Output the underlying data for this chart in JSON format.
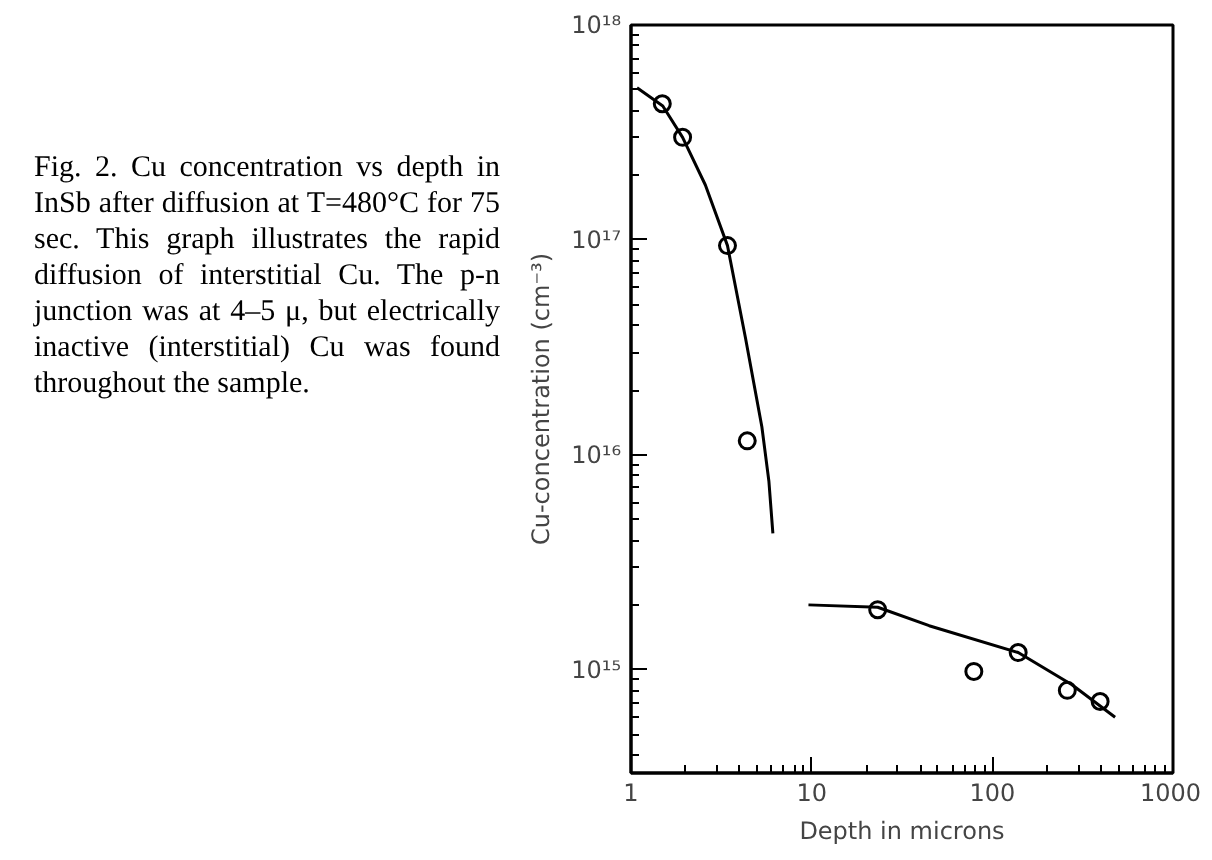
{
  "chart_data": {
    "type": "scatter",
    "annotations": [
      "Fig. 2. Cu concentration vs depth in InSb after diffusion at T=480°C for 75 sec. This graph illustrates the rapid diffusion of interstitial Cu. The p-n junction was at 4–5 μ, but electrically inactive (interstitial) Cu was found throughout the sample."
    ],
    "xlabel": "Depth in microns",
    "ylabel": "Cu-concentration (cm⁻³)",
    "log": "xy",
    "grid": false,
    "xlim": [
      1,
      1000
    ],
    "ylim": [
      330000000000000.0,
      1e+18
    ],
    "xticks": [
      1,
      10,
      100,
      1000
    ],
    "yticks": [
      {
        "value": 1000000000000000.0,
        "label": "10¹⁵"
      },
      {
        "value": 1e+16,
        "label": "10¹⁶"
      },
      {
        "value": 1e+17,
        "label": "10¹⁷"
      },
      {
        "value": 1e+18,
        "label": "10¹⁸"
      }
    ],
    "series": [
      {
        "marker": "circle",
        "color": "#000000",
        "x": [
          1.49,
          1.93,
          3.42,
          4.4,
          23.2,
          79,
          139,
          260,
          395
        ],
        "values": [
          4.3e+17,
          3e+17,
          9.4e+16,
          1.16e+16,
          1900000000000000.0,
          980000000000000.0,
          1200000000000000.0,
          800000000000000.0,
          710000000000000.0
        ]
      },
      {
        "type": "line",
        "marker": "none",
        "line_style": "solid",
        "color": "#000000",
        "x": [
          1.08,
          1.5,
          1.93,
          2.58,
          3.42,
          4.3,
          5.3,
          5.8,
          6.1
        ],
        "values": [
          5.1e+17,
          4.2e+17,
          3e+17,
          1.8e+17,
          9.4e+16,
          3.5e+16,
          1.35e+16,
          7500000000000000.0,
          4300000000000000.0
        ]
      },
      {
        "type": "line",
        "marker": "none",
        "line_style": "solid",
        "color": "#000000",
        "x": [
          9.6,
          23.2,
          44.7,
          139,
          276,
          478
        ],
        "values": [
          2000000000000000.0,
          1950000000000000.0,
          1600000000000000.0,
          1200000000000000.0,
          850000000000000.0,
          600000000000000.0
        ]
      }
    ]
  }
}
